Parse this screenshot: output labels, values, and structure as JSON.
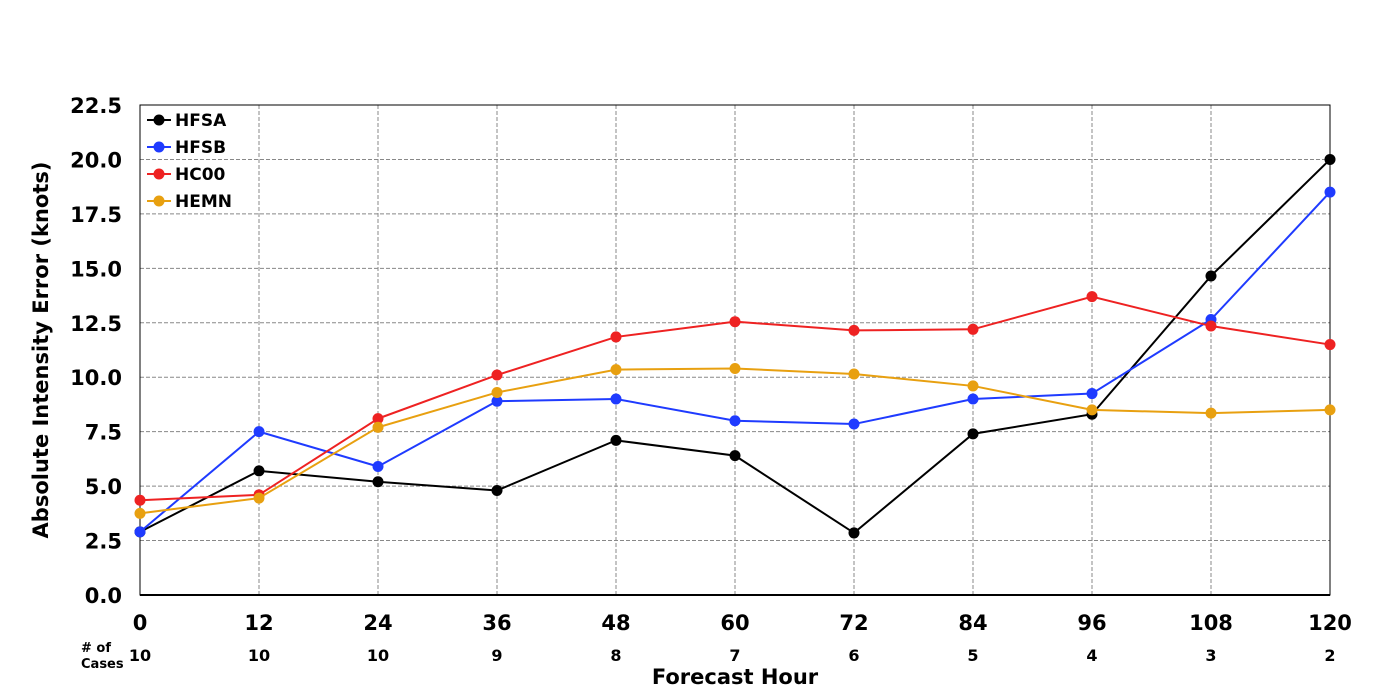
{
  "chart_data": {
    "type": "line",
    "title": "",
    "xlabel": "Forecast Hour",
    "ylabel": "Absolute Intensity Error (knots)",
    "x": [
      0,
      12,
      24,
      36,
      48,
      60,
      72,
      84,
      96,
      108,
      120
    ],
    "x_tick_labels": [
      "0",
      "12",
      "24",
      "36",
      "48",
      "60",
      "72",
      "84",
      "96",
      "108",
      "120"
    ],
    "y_tick_labels": [
      "0.0",
      "2.5",
      "5.0",
      "7.5",
      "10.0",
      "12.5",
      "15.0",
      "17.5",
      "20.0",
      "22.5"
    ],
    "xlim": [
      0,
      120
    ],
    "ylim": [
      0,
      22.5
    ],
    "grid": true,
    "legend_position": "top-left",
    "cases_label_line1": "# of",
    "cases_label_line2": "Cases",
    "cases": [
      "10",
      "10",
      "10",
      "9",
      "8",
      "7",
      "6",
      "5",
      "4",
      "3",
      "2"
    ],
    "series": [
      {
        "name": "HFSA",
        "color": "#000000",
        "values": [
          2.9,
          5.7,
          5.2,
          4.8,
          7.1,
          6.4,
          2.85,
          7.4,
          8.3,
          14.65,
          20.0
        ]
      },
      {
        "name": "HFSB",
        "color": "#1f3bff",
        "values": [
          2.9,
          7.5,
          5.9,
          8.9,
          9.0,
          8.0,
          7.85,
          9.0,
          9.25,
          12.65,
          18.5
        ]
      },
      {
        "name": "HC00",
        "color": "#ee2222",
        "values": [
          4.35,
          4.6,
          8.1,
          10.1,
          11.85,
          12.55,
          12.15,
          12.2,
          13.7,
          12.35,
          11.5
        ]
      },
      {
        "name": "HEMN",
        "color": "#e8a010",
        "values": [
          3.75,
          4.45,
          7.7,
          9.3,
          10.35,
          10.4,
          10.15,
          9.6,
          8.5,
          8.35,
          8.5
        ]
      }
    ]
  }
}
